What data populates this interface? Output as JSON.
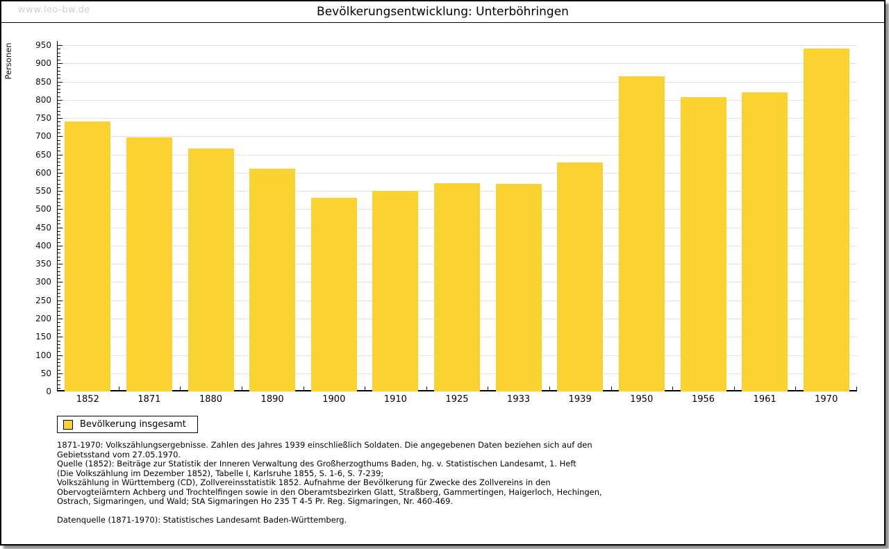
{
  "page": {
    "watermark": "www.leo-bw.de",
    "title": "Bevölkerungsentwicklung: Unterböhringen"
  },
  "chart_data": {
    "type": "bar",
    "title": "Bevölkerungsentwicklung: Unterböhringen",
    "xlabel": "",
    "ylabel": "Personen",
    "categories": [
      "1852",
      "1871",
      "1880",
      "1890",
      "1900",
      "1910",
      "1925",
      "1933",
      "1939",
      "1950",
      "1956",
      "1961",
      "1970"
    ],
    "values": [
      740,
      696,
      667,
      611,
      532,
      551,
      572,
      570,
      629,
      864,
      808,
      821,
      941
    ],
    "ylim": [
      0,
      950
    ],
    "ytick_step": 50,
    "minor_tick_step": 10,
    "grid": true,
    "legend_position": "bottom-left",
    "bar_color": "#fad232",
    "legend_label": "Bevölkerung insgesamt"
  },
  "legend": {
    "label": "Bevölkerung insgesamt"
  },
  "footer": {
    "lines": [
      "1871-1970: Volkszählungsergebnisse. Zahlen des Jahres 1939 einschließlich Soldaten. Die angegebenen Daten beziehen sich auf den",
      "Gebietsstand vom 27.05.1970.",
      "Quelle (1852): Beiträge zur Statistik der Inneren Verwaltung des Großherzogthums Baden, hg. v. Statistischen Landesamt, 1. Heft",
      "(Die Volkszählung im Dezember 1852), Tabelle I, Karlsruhe 1855, S. 1-6, S. 7-239;",
      "Volkszählung in Württemberg (CD), Zollvereinsstatistik 1852. Aufnahme der Bevölkerung für Zwecke des Zollvereins in den",
      "Obervogteiämtern Achberg und Trochtelfingen sowie in den Oberamtsbezirken Glatt, Straßberg, Gammertingen, Haigerloch, Hechingen,",
      "Ostrach, Sigmaringen, und Wald; StA Sigmaringen Ho 235 T 4-5 Pr. Reg. Sigmaringen, Nr. 460-469.",
      "",
      "Datenquelle (1871-1970): Statistisches Landesamt Baden-Württemberg."
    ]
  },
  "colors": {
    "bar": "#fad232",
    "grid": "#e2e2e2",
    "axis": "#000000",
    "watermark": "#cfcfcf"
  }
}
